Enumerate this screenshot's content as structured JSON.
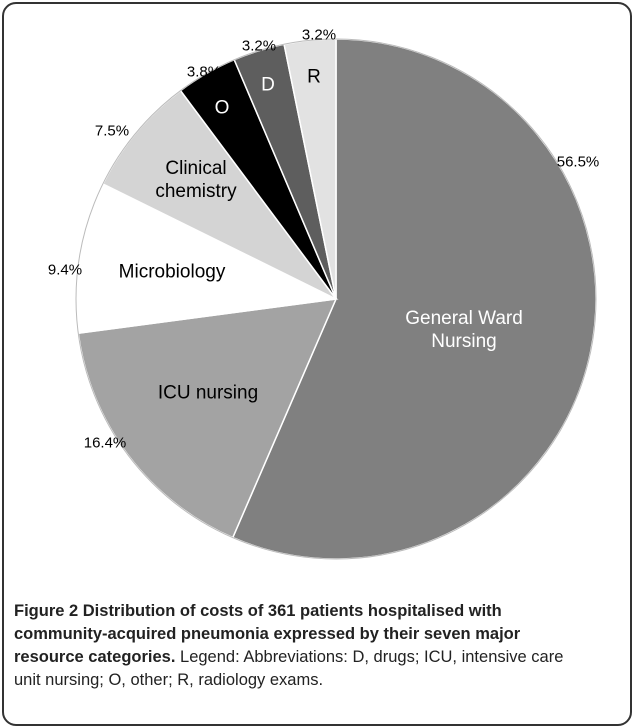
{
  "chart_data": {
    "type": "pie",
    "categories": [
      "General Ward Nursing",
      "ICU nursing",
      "Microbiology",
      "Clinical chemistry",
      "O",
      "D",
      "R"
    ],
    "values": [
      56.5,
      16.4,
      9.4,
      7.5,
      3.8,
      3.2,
      3.2
    ],
    "value_labels": [
      "56.5%",
      "16.4%",
      "9.4%",
      "7.5%",
      "3.8%",
      "3.2%",
      "3.2%"
    ],
    "colors": [
      "#808080",
      "#a3a3a3",
      "#ffffff",
      "#d4d4d4",
      "#000000",
      "#5e5e5e",
      "#e2e2e2"
    ],
    "label_colors": [
      "#ffffff",
      "#000000",
      "#000000",
      "#000000",
      "#ffffff",
      "#ffffff",
      "#000000"
    ]
  },
  "caption": {
    "title": "Figure 2 Distribution of costs of 361 patients hospitalised with community-acquired pneumonia expressed by their seven major resource categories.",
    "text": "Legend: Abbreviations: D, drugs; ICU, intensive care unit nursing; O, other; R, radiology exams."
  }
}
